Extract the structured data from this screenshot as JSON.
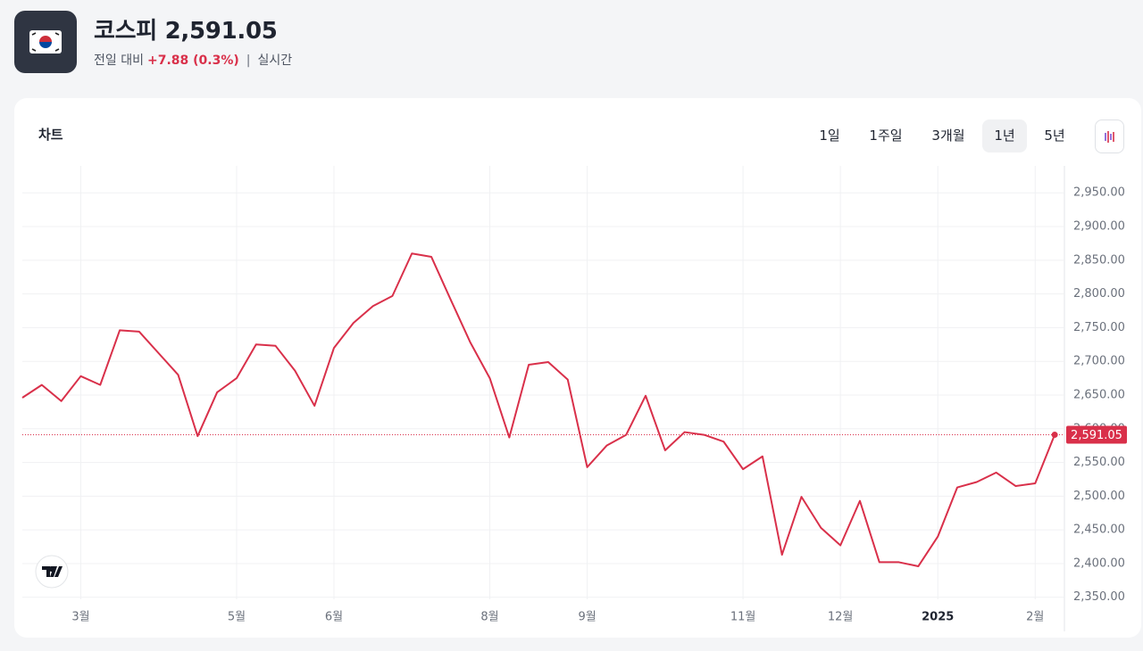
{
  "header": {
    "name": "코스피",
    "price": "2,591.05",
    "change_label": "전일 대비",
    "change": "+7.88 (0.3%)",
    "separator": "|",
    "status": "실시간"
  },
  "card": {
    "title": "차트",
    "ranges": [
      "1일",
      "1주일",
      "3개월",
      "1년",
      "5년"
    ],
    "selected_range": "1년"
  },
  "chart_data": {
    "type": "line",
    "x": [
      0,
      1,
      2,
      3,
      4,
      5,
      6,
      7,
      8,
      9,
      10,
      11,
      12,
      13,
      14,
      15,
      16,
      17,
      18,
      19,
      20,
      21,
      22,
      23,
      24,
      25,
      26,
      27,
      28,
      29,
      30,
      31,
      32,
      33,
      34,
      35,
      36,
      37,
      38,
      39,
      40,
      41,
      42,
      43,
      44,
      45,
      46,
      47,
      48,
      49,
      50,
      51,
      52,
      53
    ],
    "series": [
      {
        "name": "코스피",
        "color": "#d9304a",
        "values": [
          2646,
          2665,
          2641,
          2678,
          2665,
          2746,
          2744,
          2712,
          2680,
          2589,
          2654,
          2675,
          2725,
          2723,
          2686,
          2634,
          2720,
          2757,
          2782,
          2797,
          2860,
          2855,
          2791,
          2728,
          2675,
          2587,
          2695,
          2699,
          2673,
          2543,
          2575,
          2591,
          2649,
          2568,
          2595,
          2591,
          2581,
          2540,
          2559,
          2413,
          2499,
          2453,
          2427,
          2493,
          2402,
          2402,
          2396,
          2440,
          2513,
          2521,
          2535,
          2515,
          2519,
          2591.05
        ]
      }
    ],
    "xlim": [
      0,
      53.5
    ],
    "xticks": [
      {
        "value": 3,
        "label": "3월"
      },
      {
        "value": 11,
        "label": "5월"
      },
      {
        "value": 16,
        "label": "6월"
      },
      {
        "value": 24,
        "label": "8월"
      },
      {
        "value": 29,
        "label": "9월"
      },
      {
        "value": 37,
        "label": "11월"
      },
      {
        "value": 42,
        "label": "12월"
      },
      {
        "value": 47,
        "label": "2025"
      },
      {
        "value": 52,
        "label": "2월"
      }
    ],
    "ylim": [
      2347,
      2990
    ],
    "yticks": [
      {
        "value": 2350,
        "label": "2,350.00"
      },
      {
        "value": 2400,
        "label": "2,400.00"
      },
      {
        "value": 2450,
        "label": "2,450.00"
      },
      {
        "value": 2500,
        "label": "2,500.00"
      },
      {
        "value": 2550,
        "label": "2,550.00"
      },
      {
        "value": 2600,
        "label": "2,600.00"
      },
      {
        "value": 2650,
        "label": "2,650.00"
      },
      {
        "value": 2700,
        "label": "2,700.00"
      },
      {
        "value": 2750,
        "label": "2,750.00"
      },
      {
        "value": 2800,
        "label": "2,800.00"
      },
      {
        "value": 2850,
        "label": "2,850.00"
      },
      {
        "value": 2900,
        "label": "2,900.00"
      },
      {
        "value": 2950,
        "label": "2,950.00"
      }
    ],
    "price_line": {
      "value": 2591.05,
      "label": "2,591.05"
    },
    "grid": true
  }
}
